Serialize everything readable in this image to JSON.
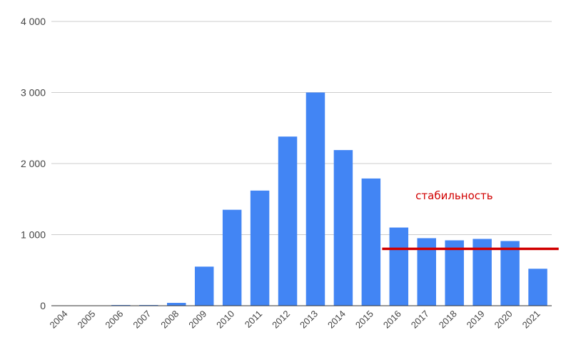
{
  "chart_data": {
    "type": "bar",
    "categories": [
      "2004",
      "2005",
      "2006",
      "2007",
      "2008",
      "2009",
      "2010",
      "2011",
      "2012",
      "2013",
      "2014",
      "2015",
      "2016",
      "2017",
      "2018",
      "2019",
      "2020",
      "2021"
    ],
    "values": [
      0,
      0,
      10,
      10,
      40,
      550,
      1350,
      1620,
      2380,
      3000,
      2190,
      1790,
      1100,
      950,
      920,
      940,
      910,
      520
    ],
    "title": "",
    "xlabel": "",
    "ylabel": "",
    "ylim": [
      0,
      4000
    ],
    "yticks": [
      0,
      1000,
      2000,
      3000,
      4000
    ],
    "ytick_labels": [
      "0",
      "1 000",
      "2 000",
      "3 000",
      "4 000"
    ],
    "grid": true,
    "legend": "none",
    "bar_color": "#4285f4",
    "annotations": [
      {
        "type": "hline",
        "y": 800,
        "x_start": "2016",
        "x_end": "2021",
        "color": "#d10000"
      },
      {
        "type": "text",
        "text": "стабильность",
        "color": "#d10000"
      }
    ]
  }
}
